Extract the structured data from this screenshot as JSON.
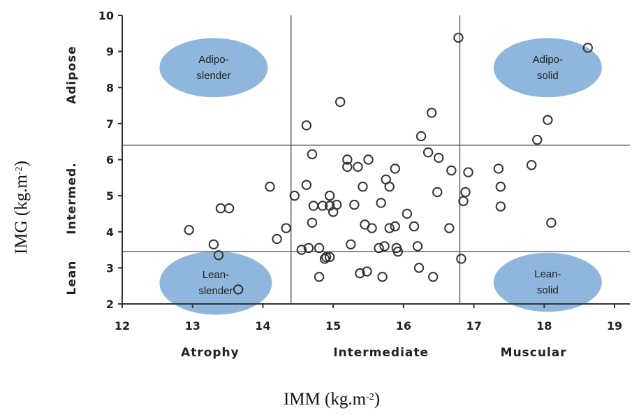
{
  "chart_data": {
    "type": "scatter",
    "title": "",
    "xlabel": "IMM (kg.m",
    "xlabel_sup": "-2",
    "xlabel_end": ")",
    "ylabel": "IMG (kg.m",
    "ylabel_sup": "-2",
    "ylabel_end": ")",
    "xlim": [
      12,
      19
    ],
    "ylim": [
      2,
      10
    ],
    "x_ticks": [
      "12",
      "13",
      "14",
      "15",
      "16",
      "17",
      "18",
      "19"
    ],
    "y_ticks": [
      "2",
      "3",
      "4",
      "5",
      "6",
      "7",
      "8",
      "9",
      "10"
    ],
    "x_categories": [
      "Atrophy",
      "Intermediate",
      "Muscular"
    ],
    "y_categories": [
      "Lean",
      "Intermed.",
      "Adipose"
    ],
    "thresholds": {
      "x": [
        14.4,
        16.8
      ],
      "y": [
        3.45,
        6.4
      ]
    },
    "regions": [
      {
        "label_line1": "Adipo-",
        "label_line2": "slender",
        "x": 13.3,
        "y": 8.55,
        "rx": 0.77,
        "ry": 0.82
      },
      {
        "label_line1": "Adipo-",
        "label_line2": "solid",
        "x": 18.05,
        "y": 8.55,
        "rx": 0.77,
        "ry": 0.82
      },
      {
        "label_line1": "Lean-",
        "label_line2": "slender",
        "x": 13.33,
        "y": 2.58,
        "rx": 0.8,
        "ry": 0.88
      },
      {
        "label_line1": "Lean-",
        "label_line2": "solid",
        "x": 18.05,
        "y": 2.6,
        "rx": 0.77,
        "ry": 0.82
      }
    ],
    "points": [
      {
        "x": 12.95,
        "y": 4.05
      },
      {
        "x": 13.3,
        "y": 3.65
      },
      {
        "x": 13.37,
        "y": 3.35
      },
      {
        "x": 13.4,
        "y": 4.65
      },
      {
        "x": 13.52,
        "y": 4.65
      },
      {
        "x": 13.65,
        "y": 2.4
      },
      {
        "x": 14.1,
        "y": 5.25
      },
      {
        "x": 14.2,
        "y": 3.8
      },
      {
        "x": 14.33,
        "y": 4.1
      },
      {
        "x": 14.45,
        "y": 5.0
      },
      {
        "x": 14.55,
        "y": 3.5
      },
      {
        "x": 14.62,
        "y": 5.3
      },
      {
        "x": 14.62,
        "y": 6.95
      },
      {
        "x": 14.65,
        "y": 3.55
      },
      {
        "x": 14.7,
        "y": 4.25
      },
      {
        "x": 14.7,
        "y": 6.15
      },
      {
        "x": 14.72,
        "y": 4.72
      },
      {
        "x": 14.8,
        "y": 2.75
      },
      {
        "x": 14.8,
        "y": 3.55
      },
      {
        "x": 14.85,
        "y": 4.72
      },
      {
        "x": 14.88,
        "y": 3.25
      },
      {
        "x": 14.9,
        "y": 3.3
      },
      {
        "x": 14.95,
        "y": 4.72
      },
      {
        "x": 14.95,
        "y": 5.0
      },
      {
        "x": 14.95,
        "y": 3.3
      },
      {
        "x": 15.0,
        "y": 4.55
      },
      {
        "x": 15.05,
        "y": 4.75
      },
      {
        "x": 15.1,
        "y": 7.6
      },
      {
        "x": 15.2,
        "y": 5.8
      },
      {
        "x": 15.2,
        "y": 6.0
      },
      {
        "x": 15.25,
        "y": 3.65
      },
      {
        "x": 15.3,
        "y": 4.75
      },
      {
        "x": 15.35,
        "y": 5.8
      },
      {
        "x": 15.38,
        "y": 2.85
      },
      {
        "x": 15.42,
        "y": 5.25
      },
      {
        "x": 15.45,
        "y": 4.2
      },
      {
        "x": 15.48,
        "y": 2.9
      },
      {
        "x": 15.5,
        "y": 6.0
      },
      {
        "x": 15.55,
        "y": 4.1
      },
      {
        "x": 15.65,
        "y": 3.55
      },
      {
        "x": 15.68,
        "y": 4.8
      },
      {
        "x": 15.7,
        "y": 2.75
      },
      {
        "x": 15.73,
        "y": 3.6
      },
      {
        "x": 15.75,
        "y": 5.45
      },
      {
        "x": 15.8,
        "y": 4.1
      },
      {
        "x": 15.8,
        "y": 5.25
      },
      {
        "x": 15.88,
        "y": 5.75
      },
      {
        "x": 15.88,
        "y": 4.15
      },
      {
        "x": 15.9,
        "y": 3.55
      },
      {
        "x": 15.92,
        "y": 3.45
      },
      {
        "x": 16.05,
        "y": 4.5
      },
      {
        "x": 16.15,
        "y": 4.15
      },
      {
        "x": 16.2,
        "y": 3.6
      },
      {
        "x": 16.22,
        "y": 3.0
      },
      {
        "x": 16.25,
        "y": 6.65
      },
      {
        "x": 16.35,
        "y": 6.2
      },
      {
        "x": 16.4,
        "y": 7.3
      },
      {
        "x": 16.42,
        "y": 2.75
      },
      {
        "x": 16.48,
        "y": 5.1
      },
      {
        "x": 16.5,
        "y": 6.05
      },
      {
        "x": 16.65,
        "y": 4.1
      },
      {
        "x": 16.68,
        "y": 5.7
      },
      {
        "x": 16.78,
        "y": 9.38
      },
      {
        "x": 16.82,
        "y": 3.25
      },
      {
        "x": 16.85,
        "y": 4.85
      },
      {
        "x": 16.88,
        "y": 5.1
      },
      {
        "x": 16.92,
        "y": 5.65
      },
      {
        "x": 17.35,
        "y": 5.75
      },
      {
        "x": 17.38,
        "y": 5.25
      },
      {
        "x": 17.38,
        "y": 4.7
      },
      {
        "x": 17.82,
        "y": 5.85
      },
      {
        "x": 17.9,
        "y": 6.55
      },
      {
        "x": 18.05,
        "y": 7.1
      },
      {
        "x": 18.1,
        "y": 4.25
      },
      {
        "x": 18.62,
        "y": 9.1
      }
    ]
  },
  "colors": {
    "region_fill": "#8fb7dd",
    "point_stroke": "#333333",
    "line": "#555555",
    "text": "#222222"
  }
}
